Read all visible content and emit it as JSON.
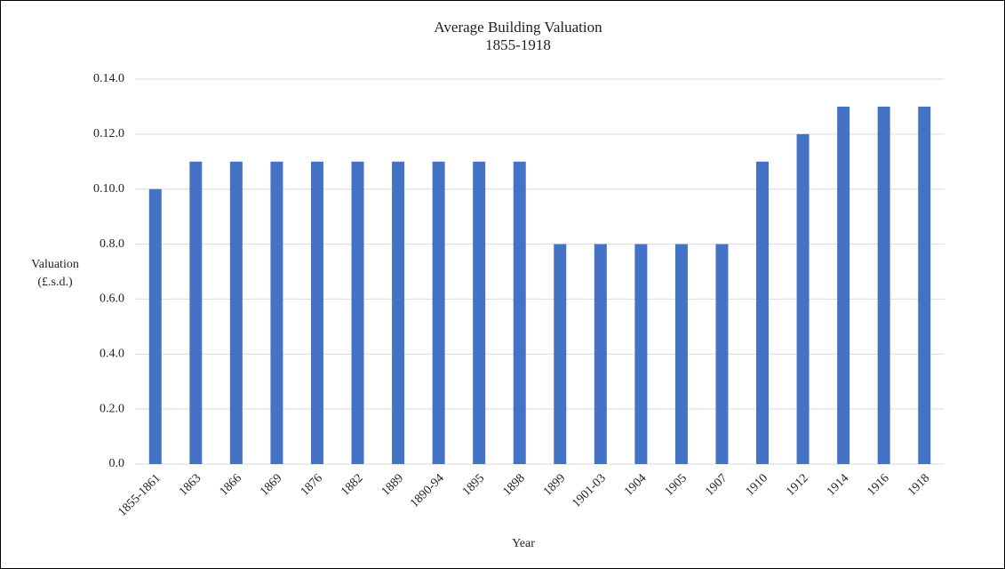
{
  "chart_data": {
    "type": "bar",
    "title": "Average  Building Valuation",
    "subtitle": "1855-1918",
    "y_label": [
      "Valuation",
      "(£.s.d.)"
    ],
    "x_label": "Year",
    "categories": [
      "1855-1861",
      "1863",
      "1866",
      "1869",
      "1876",
      "1882",
      "1889",
      "1890-94",
      "1895",
      "1898",
      "1899",
      "1901-03",
      "1904",
      "1905",
      "1907",
      "1910",
      "1912",
      "1914",
      "1916",
      "1918"
    ],
    "values": [
      10,
      11,
      11,
      11,
      11,
      11,
      11,
      11,
      11,
      11,
      8,
      8,
      8,
      8,
      8,
      11,
      12,
      13,
      13,
      13
    ],
    "color": "#4472c4",
    "ylim": [
      0,
      14
    ],
    "yticks": [
      {
        "value": 0,
        "label": "0.0"
      },
      {
        "value": 2,
        "label": "0.2.0"
      },
      {
        "value": 4,
        "label": "0.4.0"
      },
      {
        "value": 6,
        "label": "0.6.0"
      },
      {
        "value": 8,
        "label": "0.8.0"
      },
      {
        "value": 10,
        "label": "0.10.0"
      },
      {
        "value": 12,
        "label": "0.12.0"
      },
      {
        "value": 14,
        "label": "0.14.0"
      }
    ],
    "grid": true
  }
}
